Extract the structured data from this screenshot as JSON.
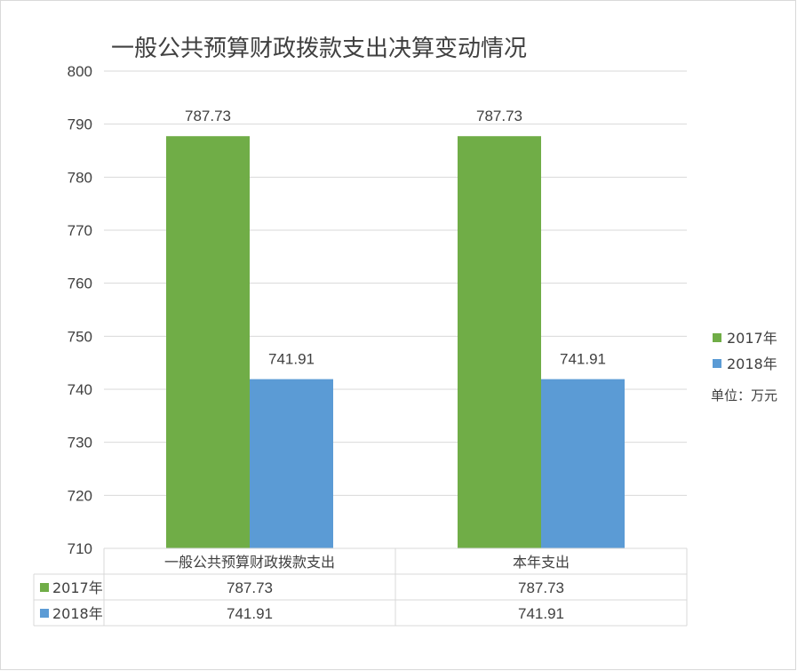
{
  "chart_data": {
    "type": "bar",
    "title": "一般公共预算财政拨款支出决算变动情况",
    "categories": [
      "一般公共预算财政拨款支出",
      "本年支出"
    ],
    "series": [
      {
        "name": "2017年",
        "values": [
          787.73,
          787.73
        ],
        "labels": [
          "787.73",
          "787.73"
        ],
        "color": "#70AD47"
      },
      {
        "name": "2018年",
        "values": [
          741.91,
          741.91
        ],
        "labels": [
          "741.91",
          "741.91"
        ],
        "color": "#5B9BD5"
      }
    ],
    "ylim": [
      710,
      800
    ],
    "yticks": [
      "710",
      "720",
      "730",
      "740",
      "750",
      "760",
      "770",
      "780",
      "790",
      "800"
    ],
    "grid": true,
    "legend_position": "right",
    "unit_note": "单位：万元",
    "data_table": {
      "rows": [
        {
          "series": "2017年",
          "cells": [
            "787.73",
            "787.73"
          ]
        },
        {
          "series": "2018年",
          "cells": [
            "741.91",
            "741.91"
          ]
        }
      ]
    }
  }
}
